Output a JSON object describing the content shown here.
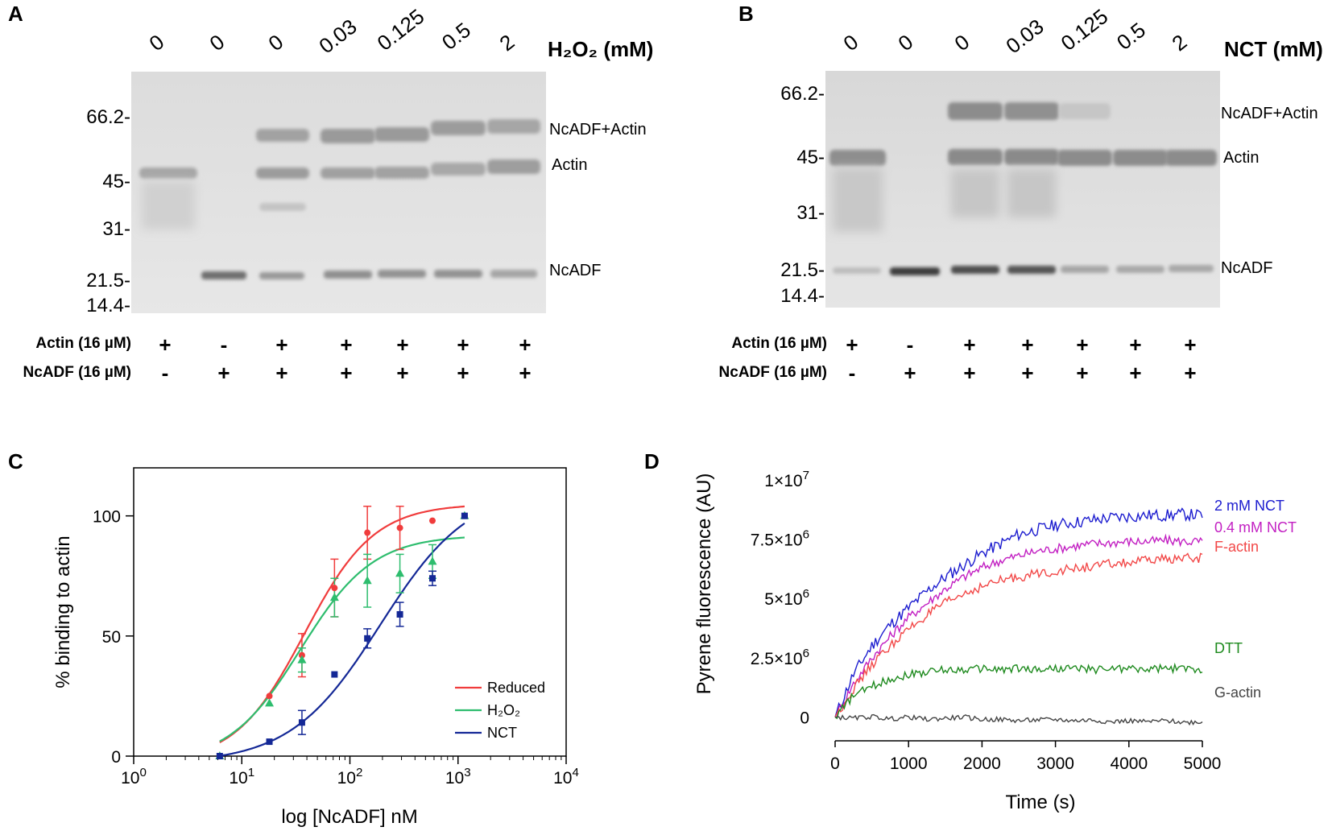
{
  "panels": {
    "a": {
      "letter": "A",
      "conc_title": "H₂O₂ (mM)",
      "concentrations": [
        "0",
        "0",
        "0",
        "0.03",
        "0.125",
        "0.5",
        "2"
      ],
      "mw_markers": [
        "66.2-",
        "45-",
        "31-",
        "21.5-",
        "14.4-"
      ],
      "band_labels": [
        "NcADF+Actin",
        "Actin",
        "NcADF"
      ],
      "rows": [
        {
          "label": "Actin (16 µM)",
          "signs": [
            "+",
            "-",
            "+",
            "+",
            "+",
            "+",
            "+"
          ]
        },
        {
          "label": "NcADF (16 µM)",
          "signs": [
            "-",
            "+",
            "+",
            "+",
            "+",
            "+",
            "+"
          ]
        }
      ]
    },
    "b": {
      "letter": "B",
      "conc_title": "NCT (mM)",
      "concentrations": [
        "0",
        "0",
        "0",
        "0.03",
        "0.125",
        "0.5",
        "2"
      ],
      "mw_markers": [
        "66.2-",
        "45-",
        "31-",
        "21.5-",
        "14.4-"
      ],
      "band_labels": [
        "NcADF+Actin",
        "Actin",
        "NcADF"
      ],
      "rows": [
        {
          "label": "Actin (16 µM)",
          "signs": [
            "+",
            "-",
            "+",
            "+",
            "+",
            "+",
            "+"
          ]
        },
        {
          "label": "NcADF (16 µM)",
          "signs": [
            "-",
            "+",
            "+",
            "+",
            "+",
            "+",
            "+"
          ]
        }
      ]
    },
    "c": {
      "letter": "C"
    },
    "d": {
      "letter": "D"
    }
  },
  "chart_data": [
    {
      "type": "scatter",
      "panel": "C",
      "xlabel": "log [NcADF] nM",
      "ylabel": "% binding to actin",
      "xscale": "log",
      "xlim": [
        1,
        10000
      ],
      "ylim": [
        0,
        120
      ],
      "xticks": [
        {
          "value": 1,
          "base": "10",
          "exp": "0"
        },
        {
          "value": 10,
          "base": "10",
          "exp": "1"
        },
        {
          "value": 100,
          "base": "10",
          "exp": "2"
        },
        {
          "value": 1000,
          "base": "10",
          "exp": "3"
        },
        {
          "value": 10000,
          "base": "10",
          "exp": "4"
        }
      ],
      "yticks": [
        0,
        50,
        100
      ],
      "legend_position": "bottom-right",
      "series": [
        {
          "name": "Reduced",
          "color": "#f03c3c",
          "marker": "circle",
          "x": [
            6.25,
            18,
            36,
            72,
            145,
            290,
            580,
            1150
          ],
          "y": [
            0,
            25,
            42,
            70,
            93,
            95,
            98,
            100
          ],
          "err": [
            0,
            0,
            9,
            12,
            11,
            9,
            0,
            0
          ],
          "fit": {
            "bottom": -3,
            "top": 105,
            "ec50": 38,
            "hill": 1.35
          }
        },
        {
          "name": "H₂O₂",
          "color": "#2ebd6e",
          "marker": "triangle",
          "x": [
            6.25,
            18,
            36,
            72,
            145,
            290,
            580,
            1150
          ],
          "y": [
            0,
            22,
            40,
            66,
            73,
            76,
            81,
            100
          ],
          "err": [
            0,
            0,
            5,
            8,
            11,
            8,
            7,
            0
          ],
          "fit": {
            "bottom": -3,
            "top": 92,
            "ec50": 35,
            "hill": 1.3
          }
        },
        {
          "name": "NCT",
          "color": "#142896",
          "marker": "square",
          "x": [
            6.25,
            18,
            36,
            72,
            145,
            290,
            580,
            1150
          ],
          "y": [
            0,
            6,
            14,
            34,
            49,
            59,
            74,
            100
          ],
          "err": [
            0,
            0,
            5,
            0,
            4,
            5,
            3,
            0
          ],
          "fit": {
            "bottom": -3,
            "top": 112,
            "ec50": 190,
            "hill": 1.05
          }
        }
      ]
    },
    {
      "type": "line",
      "panel": "D",
      "xlabel": "Time (s)",
      "ylabel": "Pyrene fluorescence (AU)",
      "xlim": [
        0,
        5000
      ],
      "ylim": [
        -1000000,
        10200000
      ],
      "xticks": [
        "0",
        "1000",
        "2000",
        "3000",
        "4000",
        "5000"
      ],
      "yticks": [
        {
          "value": 0,
          "label": "0",
          "exp": ""
        },
        {
          "value": 2500000,
          "label": "2.5×10",
          "exp": "6"
        },
        {
          "value": 5000000,
          "label": "5×10",
          "exp": "6"
        },
        {
          "value": 7500000,
          "label": "7.5×10",
          "exp": "6"
        },
        {
          "value": 10000000,
          "label": "1×10",
          "exp": "7"
        }
      ],
      "series": [
        {
          "name": "2 mM NCT",
          "color": "#1c1ccf",
          "x": [
            0,
            250,
            500,
            750,
            1000,
            1250,
            1500,
            1750,
            2000,
            2250,
            2500,
            2750,
            3000,
            3250,
            3500,
            3750,
            4000,
            4250,
            4500,
            4750,
            5000
          ],
          "y": [
            0,
            1800000,
            3000000,
            3900000,
            4600000,
            5300000,
            5900000,
            6400000,
            6900000,
            7300000,
            7700000,
            7900000,
            8100000,
            8200000,
            8300000,
            8400000,
            8450000,
            8500000,
            8500000,
            8550000,
            8500000
          ]
        },
        {
          "name": "0.4 mM NCT",
          "color": "#c21fc2",
          "x": [
            0,
            250,
            500,
            750,
            1000,
            1250,
            1500,
            1750,
            2000,
            2250,
            2500,
            2750,
            3000,
            3250,
            3500,
            3750,
            4000,
            4250,
            4500,
            4750,
            5000
          ],
          "y": [
            0,
            1400000,
            2500000,
            3400000,
            4200000,
            4800000,
            5400000,
            5900000,
            6300000,
            6600000,
            6800000,
            7000000,
            7100000,
            7200000,
            7300000,
            7350000,
            7400000,
            7400000,
            7450000,
            7400000,
            7400000
          ]
        },
        {
          "name": "F-actin",
          "color": "#f24848",
          "x": [
            0,
            250,
            500,
            750,
            1000,
            1250,
            1500,
            1750,
            2000,
            2250,
            2500,
            2750,
            3000,
            3250,
            3500,
            3750,
            4000,
            4250,
            4500,
            4750,
            5000
          ],
          "y": [
            0,
            1200000,
            2200000,
            3000000,
            3700000,
            4300000,
            4800000,
            5200000,
            5500000,
            5750000,
            5900000,
            6050000,
            6150000,
            6250000,
            6350000,
            6450000,
            6500000,
            6600000,
            6650000,
            6700000,
            6700000
          ]
        },
        {
          "name": "DTT",
          "color": "#1e8a1e",
          "x": [
            0,
            250,
            500,
            750,
            1000,
            1250,
            1500,
            1750,
            2000,
            2250,
            2500,
            2750,
            3000,
            3250,
            3500,
            3750,
            4000,
            4250,
            4500,
            4750,
            5000
          ],
          "y": [
            0,
            900000,
            1300000,
            1600000,
            1800000,
            1900000,
            2000000,
            2000000,
            2050000,
            2000000,
            2050000,
            2000000,
            2050000,
            2050000,
            2000000,
            2050000,
            2050000,
            2000000,
            2050000,
            2050000,
            2000000
          ]
        },
        {
          "name": "G-actin",
          "color": "#444444",
          "x": [
            0,
            250,
            500,
            750,
            1000,
            1250,
            1500,
            1750,
            2000,
            2250,
            2500,
            2750,
            3000,
            3250,
            3500,
            3750,
            4000,
            4250,
            4500,
            4750,
            5000
          ],
          "y": [
            0,
            -50000,
            20000,
            -80000,
            0,
            -100000,
            -50000,
            0,
            -100000,
            -100000,
            -150000,
            -120000,
            -100000,
            -150000,
            -120000,
            -200000,
            -150000,
            -200000,
            -150000,
            -220000,
            -200000
          ]
        }
      ]
    }
  ]
}
